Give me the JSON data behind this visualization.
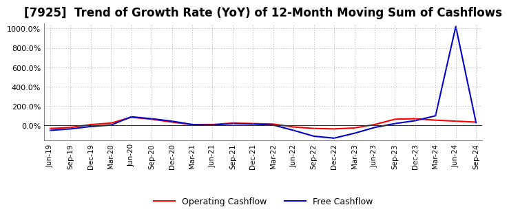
{
  "title": "[7925]  Trend of Growth Rate (YoY) of 12-Month Moving Sum of Cashflows",
  "ylim": [
    -150,
    1050
  ],
  "yticks": [
    0.0,
    200.0,
    400.0,
    600.0,
    800.0,
    1000.0
  ],
  "ytick_labels": [
    "0.0%",
    "200.0%",
    "400.0%",
    "600.0%",
    "800.0%",
    "1000.0%"
  ],
  "x_labels": [
    "Jun-19",
    "Sep-19",
    "Dec-19",
    "Mar-20",
    "Jun-20",
    "Sep-20",
    "Dec-20",
    "Mar-21",
    "Jun-21",
    "Sep-21",
    "Dec-21",
    "Mar-22",
    "Jun-22",
    "Sep-22",
    "Dec-22",
    "Mar-23",
    "Jun-23",
    "Sep-23",
    "Dec-23",
    "Mar-24",
    "Jun-24",
    "Sep-24"
  ],
  "operating_cashflow": [
    -30,
    -20,
    10,
    25,
    85,
    65,
    35,
    10,
    10,
    25,
    20,
    15,
    -15,
    -30,
    -35,
    -25,
    10,
    65,
    70,
    55,
    45,
    35
  ],
  "free_cashflow": [
    -50,
    -35,
    -10,
    5,
    90,
    70,
    45,
    10,
    5,
    20,
    15,
    5,
    -50,
    -110,
    -130,
    -80,
    -20,
    20,
    50,
    100,
    1020,
    30
  ],
  "op_color": "#ff0000",
  "fc_color": "#0000cc",
  "grid_color": "#aaaaaa",
  "bg_color": "#ffffff",
  "title_fontsize": 12,
  "legend_labels": [
    "Operating Cashflow",
    "Free Cashflow"
  ]
}
